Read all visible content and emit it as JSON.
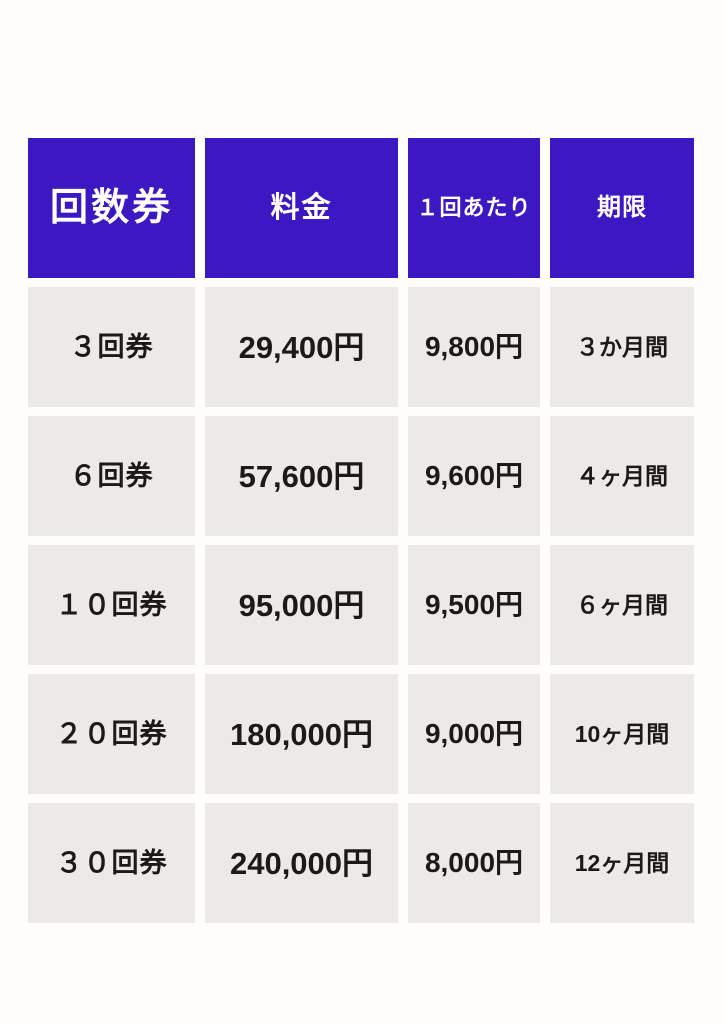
{
  "colors": {
    "page_background": "#FFFEFB",
    "header_background": "#3C18C3",
    "header_text": "#FFFFFF",
    "cell_background": "#ECEAE7",
    "cell_text": "#1B1A17"
  },
  "chart_data": {
    "type": "table",
    "columns": [
      "回数券",
      "料金",
      "１回あたり",
      "期限"
    ],
    "rows": [
      [
        "３回券",
        "29,400円",
        "9,800円",
        "３か月間"
      ],
      [
        "６回券",
        "57,600円",
        "9,600円",
        "４ヶ月間"
      ],
      [
        "１０回券",
        "95,000円",
        "9,500円",
        "６ヶ月間"
      ],
      [
        "２０回券",
        "180,000円",
        "9,000円",
        "10ヶ月間"
      ],
      [
        "３０回券",
        "240,000円",
        "8,000円",
        "12ヶ月間"
      ]
    ]
  }
}
